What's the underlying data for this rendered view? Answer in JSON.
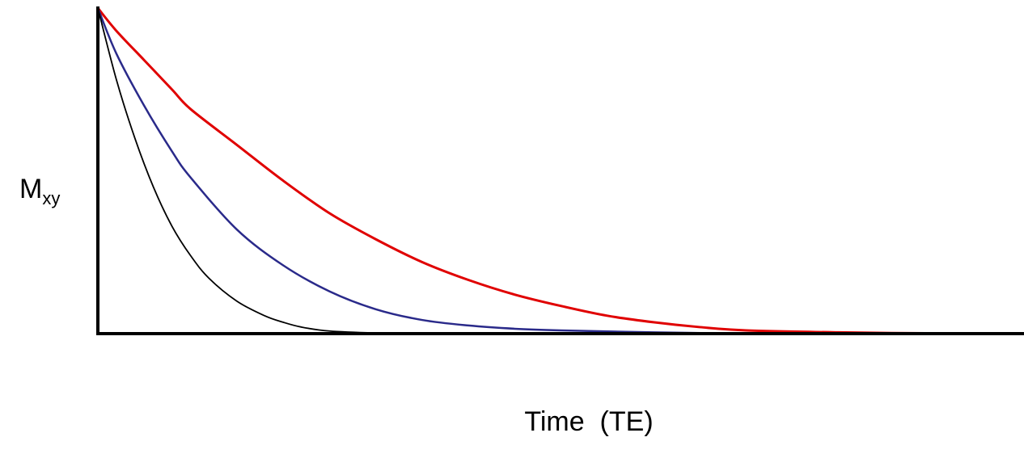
{
  "chart_data": {
    "type": "line",
    "title": "",
    "xlabel": "Time  (TE)",
    "ylabel": {
      "main": "M",
      "subscript": "xy"
    },
    "xlim": [
      0,
      100
    ],
    "ylim": [
      0,
      1
    ],
    "grid": false,
    "legend": "none",
    "series": [
      {
        "color": "#e00000",
        "x": [
          0,
          2,
          5,
          8,
          10,
          15,
          20,
          25,
          30,
          35,
          40,
          45,
          50,
          55,
          60,
          65,
          70,
          80,
          90,
          100
        ],
        "y": [
          1.0,
          0.93,
          0.84,
          0.75,
          0.69,
          0.58,
          0.47,
          0.37,
          0.29,
          0.22,
          0.165,
          0.12,
          0.085,
          0.055,
          0.035,
          0.02,
          0.01,
          0.004,
          0.001,
          0.0
        ]
      },
      {
        "color": "#2a2a8a",
        "x": [
          0,
          2,
          5,
          8,
          10,
          15,
          20,
          25,
          30,
          35,
          40,
          45,
          50,
          60,
          70
        ],
        "y": [
          1.0,
          0.86,
          0.7,
          0.56,
          0.48,
          0.32,
          0.21,
          0.13,
          0.075,
          0.042,
          0.025,
          0.015,
          0.01,
          0.004,
          0.0
        ]
      },
      {
        "color": "#000000",
        "x": [
          0,
          2,
          4,
          6,
          8,
          10,
          12,
          15,
          18,
          20,
          22,
          25,
          30,
          35
        ],
        "y": [
          1.0,
          0.78,
          0.6,
          0.45,
          0.33,
          0.24,
          0.17,
          0.1,
          0.055,
          0.035,
          0.02,
          0.008,
          0.002,
          0.0
        ]
      }
    ]
  }
}
